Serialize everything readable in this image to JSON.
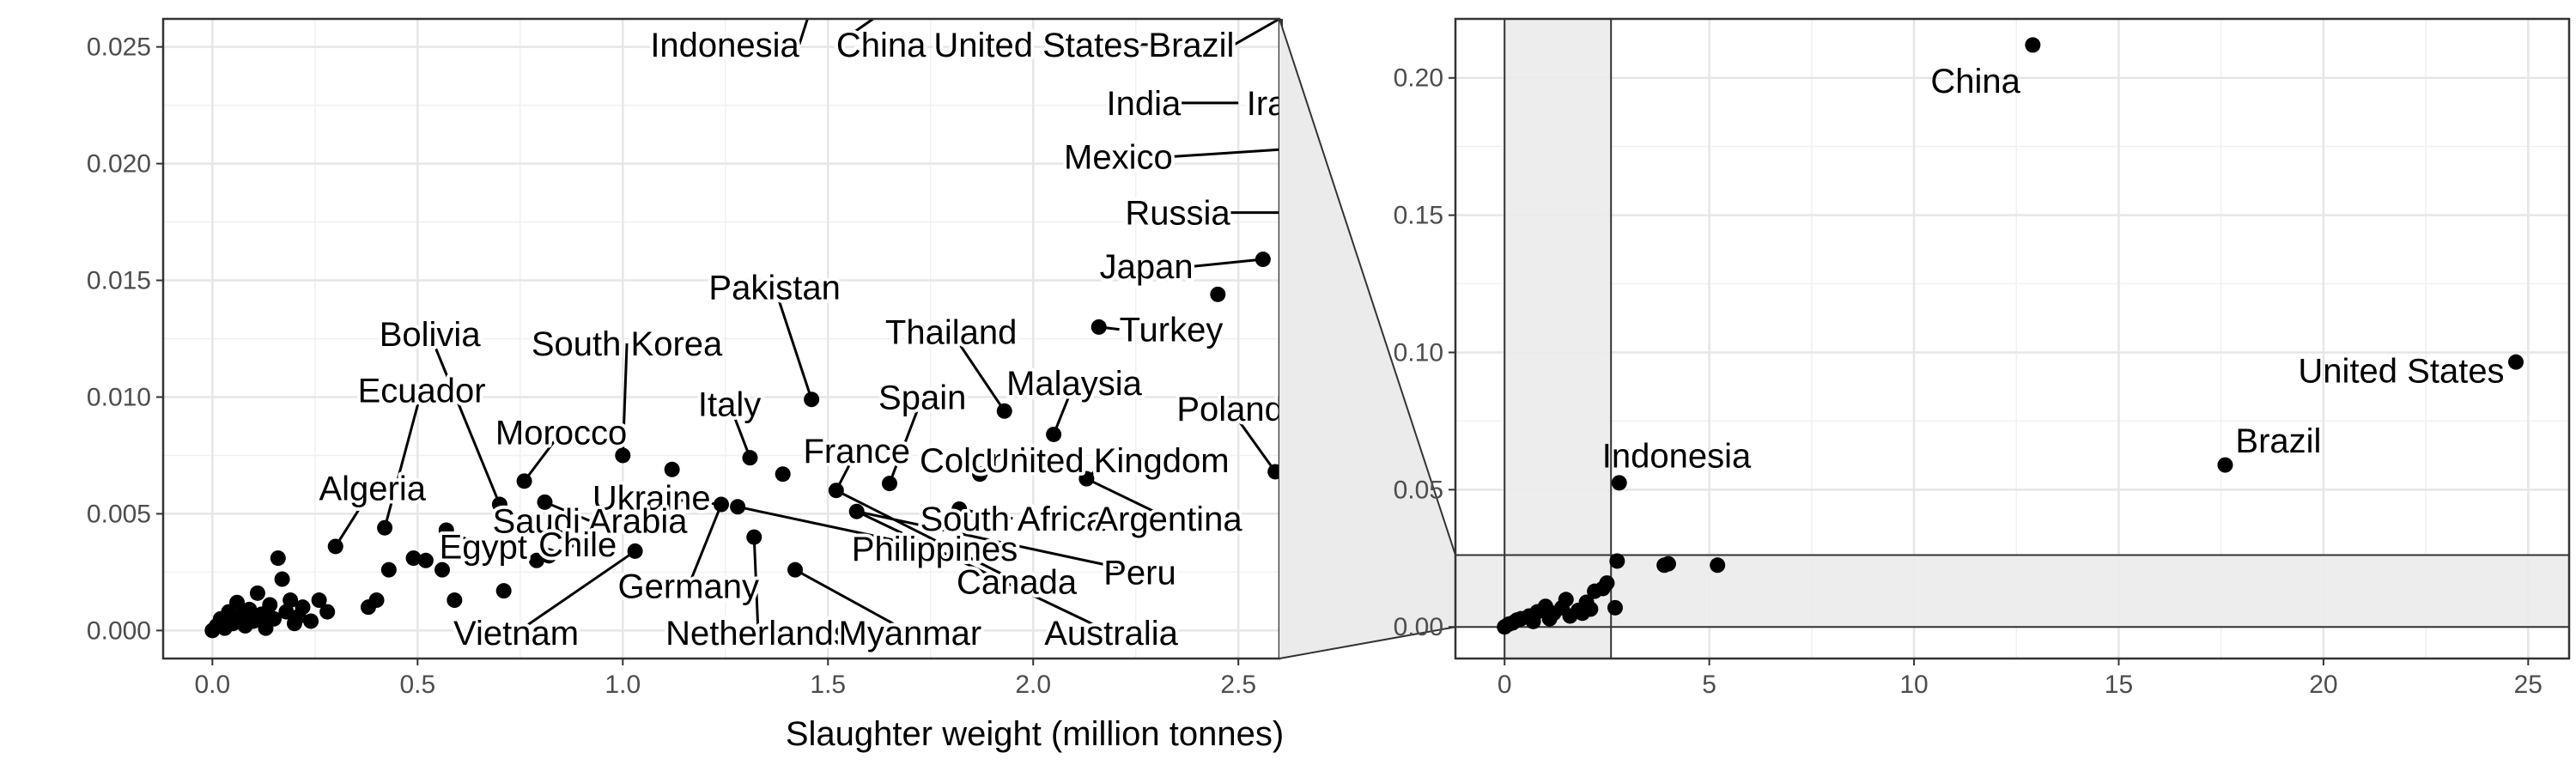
{
  "chart_data": [
    {
      "id": "zoom_panel",
      "type": "scatter",
      "xlabel": "Slaughter weight (million tonnes)",
      "ylabel": "",
      "xlim": [
        -0.12,
        2.6
      ],
      "ylim": [
        -0.0012,
        0.0262
      ],
      "x_ticks": [
        0.0,
        0.5,
        1.0,
        1.5,
        2.0,
        2.5
      ],
      "x_tick_labels": [
        "0.0",
        "0.5",
        "1.0",
        "1.5",
        "2.0",
        "2.5"
      ],
      "y_ticks": [
        0.0,
        0.005,
        0.01,
        0.015,
        0.02,
        0.025
      ],
      "y_tick_labels": [
        "0.000",
        "0.005",
        "0.010",
        "0.015",
        "0.020",
        "0.025"
      ],
      "grid": true,
      "points": [
        {
          "x": 0.0,
          "y": 0.0
        },
        {
          "x": 0.01,
          "y": 0.0002
        },
        {
          "x": 0.02,
          "y": 0.0005
        },
        {
          "x": 0.03,
          "y": 0.0001
        },
        {
          "x": 0.04,
          "y": 0.0008
        },
        {
          "x": 0.05,
          "y": 0.0003
        },
        {
          "x": 0.06,
          "y": 0.0012
        },
        {
          "x": 0.07,
          "y": 0.0006
        },
        {
          "x": 0.08,
          "y": 0.0002
        },
        {
          "x": 0.09,
          "y": 0.0009
        },
        {
          "x": 0.1,
          "y": 0.0004
        },
        {
          "x": 0.11,
          "y": 0.0016
        },
        {
          "x": 0.12,
          "y": 0.0007
        },
        {
          "x": 0.13,
          "y": 0.0001
        },
        {
          "x": 0.14,
          "y": 0.0011
        },
        {
          "x": 0.15,
          "y": 0.0005
        },
        {
          "x": 0.16,
          "y": 0.0031
        },
        {
          "x": 0.17,
          "y": 0.0022
        },
        {
          "x": 0.18,
          "y": 0.0008
        },
        {
          "x": 0.19,
          "y": 0.0013
        },
        {
          "x": 0.2,
          "y": 0.0003
        },
        {
          "x": 0.21,
          "y": 0.0006
        },
        {
          "x": 0.22,
          "y": 0.001
        },
        {
          "x": 0.24,
          "y": 0.0004
        },
        {
          "x": 0.26,
          "y": 0.0013
        },
        {
          "x": 0.28,
          "y": 0.0008
        },
        {
          "x": 0.3,
          "y": 0.0036
        },
        {
          "x": 0.38,
          "y": 0.001
        },
        {
          "x": 0.4,
          "y": 0.0013
        },
        {
          "x": 0.42,
          "y": 0.0044
        },
        {
          "x": 0.43,
          "y": 0.0026
        },
        {
          "x": 0.49,
          "y": 0.0031
        },
        {
          "x": 0.52,
          "y": 0.003
        },
        {
          "x": 0.56,
          "y": 0.0026
        },
        {
          "x": 0.57,
          "y": 0.0043
        },
        {
          "x": 0.59,
          "y": 0.0013
        },
        {
          "x": 0.7,
          "y": 0.0054
        },
        {
          "x": 0.71,
          "y": 0.0017
        },
        {
          "x": 0.76,
          "y": 0.0064
        },
        {
          "x": 0.79,
          "y": 0.003
        },
        {
          "x": 0.81,
          "y": 0.0055
        },
        {
          "x": 0.82,
          "y": 0.0032
        },
        {
          "x": 1.0,
          "y": 0.0075
        },
        {
          "x": 1.03,
          "y": 0.0034
        },
        {
          "x": 1.12,
          "y": 0.0069
        },
        {
          "x": 1.24,
          "y": 0.0054
        },
        {
          "x": 1.28,
          "y": 0.0053
        },
        {
          "x": 1.31,
          "y": 0.0074
        },
        {
          "x": 1.32,
          "y": 0.004
        },
        {
          "x": 1.39,
          "y": 0.0067
        },
        {
          "x": 1.42,
          "y": 0.0026
        },
        {
          "x": 1.46,
          "y": 0.0099
        },
        {
          "x": 1.52,
          "y": 0.006
        },
        {
          "x": 1.57,
          "y": 0.0051
        },
        {
          "x": 1.65,
          "y": 0.0063
        },
        {
          "x": 1.82,
          "y": 0.0052
        },
        {
          "x": 1.87,
          "y": 0.0067
        },
        {
          "x": 1.93,
          "y": 0.0094
        },
        {
          "x": 2.05,
          "y": 0.0084
        },
        {
          "x": 2.13,
          "y": 0.0065
        },
        {
          "x": 2.16,
          "y": 0.013
        },
        {
          "x": 2.45,
          "y": 0.0144
        },
        {
          "x": 2.56,
          "y": 0.0159
        },
        {
          "x": 2.59,
          "y": 0.0068
        }
      ],
      "labels": [
        {
          "text": "Indonesia",
          "tx": 1.43,
          "ty": 0.0251,
          "px": 1.45,
          "py": 0.0262,
          "anchor": "end"
        },
        {
          "text": "China",
          "tx": 1.52,
          "ty": 0.0251,
          "px": 1.61,
          "py": 0.0262,
          "anchor": "start"
        },
        {
          "text": "United States",
          "tx": 2.26,
          "ty": 0.0251,
          "px": 2.36,
          "py": 0.0251,
          "anchor": "end"
        },
        {
          "text": "Brazil",
          "tx": 2.49,
          "ty": 0.0251,
          "px": 2.6,
          "py": 0.0262,
          "anchor": "end"
        },
        {
          "text": "India",
          "tx": 2.36,
          "ty": 0.0226,
          "px": 2.5,
          "py": 0.0226,
          "anchor": "end"
        },
        {
          "text": "Iran",
          "tx": 2.52,
          "ty": 0.0226,
          "px": 2.6,
          "py": 0.0228,
          "anchor": "start"
        },
        {
          "text": "Mexico",
          "tx": 2.34,
          "ty": 0.0203,
          "px": 2.6,
          "py": 0.0206,
          "anchor": "end"
        },
        {
          "text": "Russia",
          "tx": 2.48,
          "ty": 0.0179,
          "px": 2.6,
          "py": 0.0179,
          "anchor": "end"
        },
        {
          "text": "Japan",
          "tx": 2.39,
          "ty": 0.0156,
          "px": 2.56,
          "py": 0.0159,
          "anchor": "end"
        },
        {
          "text": "Turkey",
          "tx": 2.21,
          "ty": 0.0129,
          "px": 2.16,
          "py": 0.013,
          "anchor": "start"
        },
        {
          "text": "Pakistan",
          "tx": 1.37,
          "ty": 0.0147,
          "px": 1.46,
          "py": 0.0099,
          "anchor": "middle"
        },
        {
          "text": "Thailand",
          "tx": 1.8,
          "ty": 0.0128,
          "px": 1.93,
          "py": 0.0094,
          "anchor": "middle"
        },
        {
          "text": "Malaysia",
          "tx": 2.1,
          "ty": 0.0106,
          "px": 2.05,
          "py": 0.0084,
          "anchor": "middle"
        },
        {
          "text": "Poland",
          "tx": 2.48,
          "ty": 0.0095,
          "px": 2.59,
          "py": 0.0068,
          "anchor": "middle"
        },
        {
          "text": "Spain",
          "tx": 1.73,
          "ty": 0.01,
          "px": 1.65,
          "py": 0.0063,
          "anchor": "middle"
        },
        {
          "text": "Italy",
          "tx": 1.26,
          "ty": 0.0097,
          "px": 1.31,
          "py": 0.0074,
          "anchor": "middle"
        },
        {
          "text": "South Korea",
          "tx": 1.01,
          "ty": 0.0123,
          "px": 1.0,
          "py": 0.0075,
          "anchor": "middle"
        },
        {
          "text": "Bolivia",
          "tx": 0.53,
          "ty": 0.0127,
          "px": 0.7,
          "py": 0.0054,
          "anchor": "middle"
        },
        {
          "text": "Ecuador",
          "tx": 0.51,
          "ty": 0.0103,
          "px": 0.42,
          "py": 0.0044,
          "anchor": "middle"
        },
        {
          "text": "Morocco",
          "tx": 0.85,
          "ty": 0.0085,
          "px": 0.76,
          "py": 0.0064,
          "anchor": "middle"
        },
        {
          "text": "Algeria",
          "tx": 0.39,
          "ty": 0.0061,
          "px": 0.3,
          "py": 0.0036,
          "anchor": "middle"
        },
        {
          "text": "France",
          "tx": 1.57,
          "ty": 0.0077,
          "px": 1.52,
          "py": 0.006,
          "anchor": "middle"
        },
        {
          "text": "Colombia",
          "tx": 1.9,
          "ty": 0.0073,
          "px": 1.87,
          "py": 0.0067,
          "anchor": "middle"
        },
        {
          "text": "United Kingdom",
          "tx": 2.18,
          "ty": 0.0073,
          "px": 2.13,
          "py": 0.0065,
          "anchor": "middle"
        },
        {
          "text": "Ukraine",
          "tx": 1.07,
          "ty": 0.0057,
          "px": 1.24,
          "py": 0.0054,
          "anchor": "middle"
        },
        {
          "text": "Saudi Arabia",
          "tx": 0.92,
          "ty": 0.0047,
          "px": 0.81,
          "py": 0.0055,
          "anchor": "middle"
        },
        {
          "text": "Egypt",
          "tx": 0.66,
          "ty": 0.0036,
          "px": 0.57,
          "py": 0.0043,
          "anchor": "middle"
        },
        {
          "text": "Chile",
          "tx": 0.89,
          "ty": 0.0037,
          "px": 0.79,
          "py": 0.003,
          "anchor": "middle"
        },
        {
          "text": "South Africa",
          "tx": 1.95,
          "ty": 0.0048,
          "px": 1.82,
          "py": 0.0052,
          "anchor": "middle"
        },
        {
          "text": "Argentina",
          "tx": 2.33,
          "ty": 0.0048,
          "px": 2.13,
          "py": 0.0065,
          "anchor": "middle"
        },
        {
          "text": "Philippines",
          "tx": 1.76,
          "ty": 0.0035,
          "px": 1.28,
          "py": 0.0053,
          "anchor": "middle"
        },
        {
          "text": "Peru",
          "tx": 2.26,
          "ty": 0.0025,
          "px": 1.57,
          "py": 0.0051,
          "anchor": "middle"
        },
        {
          "text": "Canada",
          "tx": 1.96,
          "ty": 0.0021,
          "px": 1.52,
          "py": 0.006,
          "anchor": "middle"
        },
        {
          "text": "Germany",
          "tx": 1.16,
          "ty": 0.0019,
          "px": 1.24,
          "py": 0.0054,
          "anchor": "middle"
        },
        {
          "text": "Vietnam",
          "tx": 0.74,
          "ty": -0.0001,
          "px": 1.03,
          "py": 0.0034,
          "anchor": "middle"
        },
        {
          "text": "Netherlands",
          "tx": 1.33,
          "ty": -0.0001,
          "px": 1.32,
          "py": 0.004,
          "anchor": "middle"
        },
        {
          "text": "Myanmar",
          "tx": 1.7,
          "ty": -0.0001,
          "px": 1.42,
          "py": 0.0026,
          "anchor": "middle"
        },
        {
          "text": "Australia",
          "tx": 2.19,
          "ty": -0.0001,
          "px": 1.57,
          "py": 0.0051,
          "anchor": "middle"
        }
      ]
    },
    {
      "id": "full_panel",
      "type": "scatter",
      "xlabel": "",
      "ylabel": "",
      "xlim": [
        -1.2,
        26.0
      ],
      "ylim": [
        -0.0115,
        0.2215
      ],
      "x_ticks": [
        0,
        5,
        10,
        15,
        20,
        25
      ],
      "x_tick_labels": [
        "0",
        "5",
        "10",
        "15",
        "20",
        "25"
      ],
      "y_ticks": [
        0.0,
        0.05,
        0.1,
        0.15,
        0.2
      ],
      "y_tick_labels": [
        "0.00",
        "0.05",
        "0.10",
        "0.15",
        "0.20"
      ],
      "grid": true,
      "zoom_window": {
        "x": [
          0,
          2.6
        ],
        "y": [
          0,
          0.0262
        ]
      },
      "points": [
        {
          "x": 12.9,
          "y": 0.212
        },
        {
          "x": 24.7,
          "y": 0.0965
        },
        {
          "x": 17.6,
          "y": 0.059
        },
        {
          "x": 2.8,
          "y": 0.0525
        },
        {
          "x": 2.75,
          "y": 0.024
        },
        {
          "x": 3.9,
          "y": 0.0225
        },
        {
          "x": 4.0,
          "y": 0.023
        },
        {
          "x": 5.2,
          "y": 0.0225
        },
        {
          "x": 2.5,
          "y": 0.016
        },
        {
          "x": 2.4,
          "y": 0.014
        },
        {
          "x": 2.7,
          "y": 0.007
        },
        {
          "x": 2.2,
          "y": 0.013
        },
        {
          "x": 2.0,
          "y": 0.009
        },
        {
          "x": 1.8,
          "y": 0.006
        },
        {
          "x": 1.5,
          "y": 0.01
        },
        {
          "x": 1.4,
          "y": 0.007
        },
        {
          "x": 1.2,
          "y": 0.005
        },
        {
          "x": 1.0,
          "y": 0.0075
        },
        {
          "x": 0.8,
          "y": 0.0055
        },
        {
          "x": 0.6,
          "y": 0.004
        },
        {
          "x": 0.4,
          "y": 0.003
        },
        {
          "x": 0.2,
          "y": 0.0015
        },
        {
          "x": 0.1,
          "y": 0.001
        },
        {
          "x": 0.0,
          "y": 0.0
        },
        {
          "x": 0.3,
          "y": 0.0025
        },
        {
          "x": 0.7,
          "y": 0.002
        },
        {
          "x": 1.6,
          "y": 0.004
        },
        {
          "x": 1.1,
          "y": 0.003
        },
        {
          "x": 1.9,
          "y": 0.005
        },
        {
          "x": 2.1,
          "y": 0.0065
        }
      ],
      "labels": [
        {
          "text": "China",
          "x": 11.5,
          "y": 0.199,
          "anchor": "middle"
        },
        {
          "text": "United States",
          "x": 21.9,
          "y": 0.0935,
          "anchor": "middle"
        },
        {
          "text": "Brazil",
          "x": 18.9,
          "y": 0.068,
          "anchor": "middle"
        },
        {
          "text": "Indonesia",
          "x": 4.2,
          "y": 0.0625,
          "anchor": "middle"
        }
      ]
    }
  ]
}
